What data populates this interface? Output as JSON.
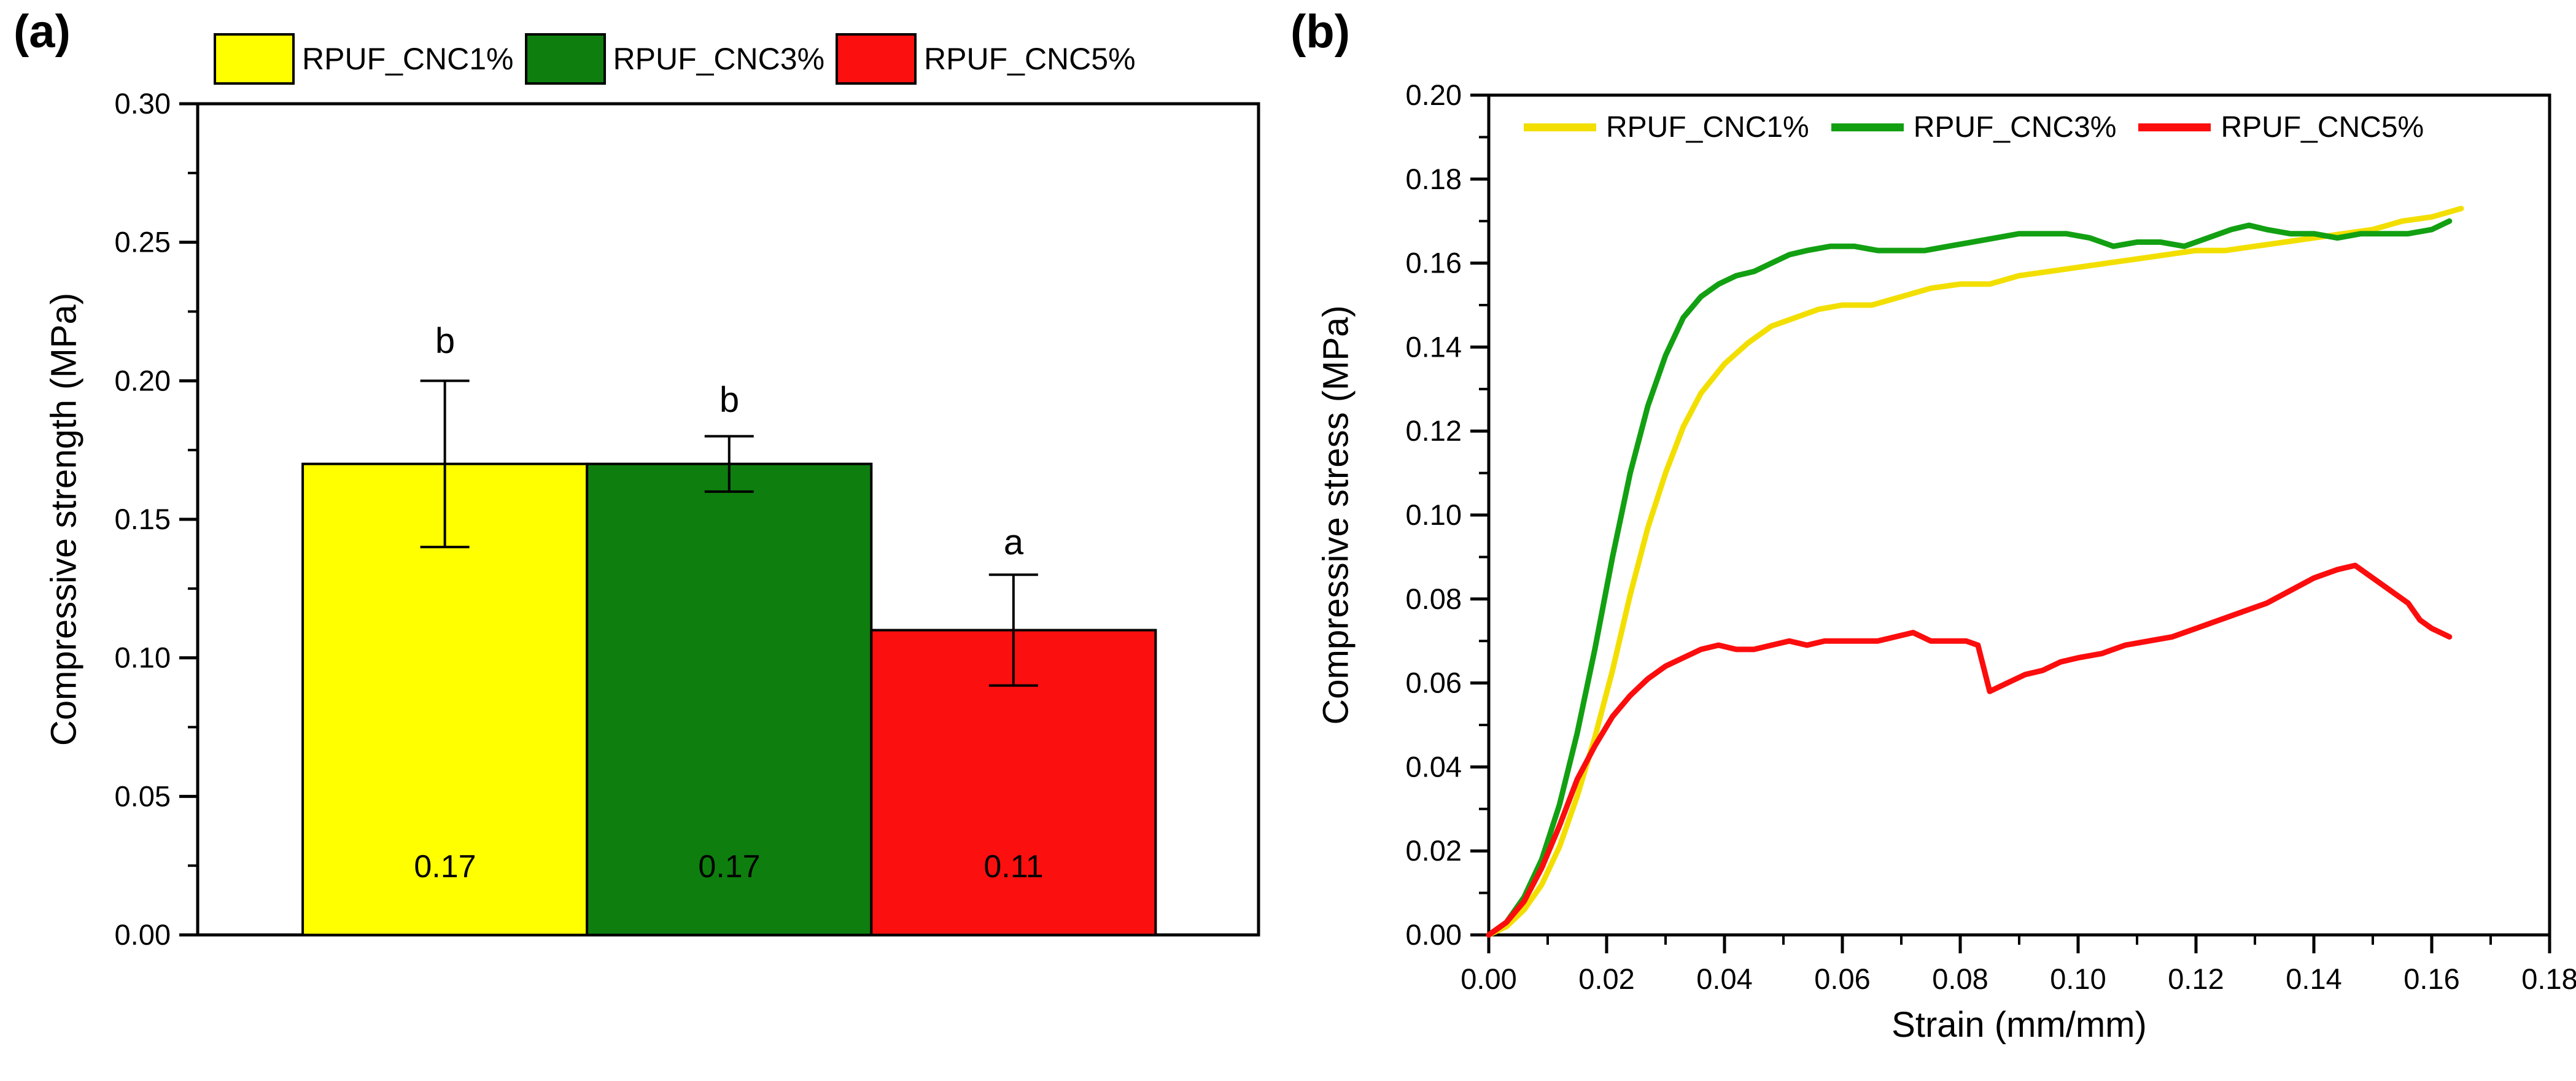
{
  "figure": {
    "panel_a_label": "(a)",
    "panel_b_label": "(b)",
    "background": "#ffffff",
    "text_color": "#000000"
  },
  "chart_data": [
    {
      "type": "bar",
      "panel": "a",
      "title": "",
      "xlabel": "",
      "ylabel": "Compressive strength (MPa)",
      "categories": [
        "RPUF_CNC1%",
        "RPUF_CNC3%",
        "RPUF_CNC5%"
      ],
      "values": [
        0.17,
        0.17,
        0.11
      ],
      "errors": [
        0.03,
        0.01,
        0.02
      ],
      "bar_labels": [
        "0.17",
        "0.17",
        "0.11"
      ],
      "sig_letters": [
        "b",
        "b",
        "a"
      ],
      "colors": [
        "#ffff00",
        "#0e7e0e",
        "#fb0f0f"
      ],
      "bar_edge_color": "#000000",
      "ylim": [
        0,
        0.3
      ],
      "yticks": [
        0,
        0.05,
        0.1,
        0.15,
        0.2,
        0.25,
        0.3
      ],
      "ytick_labels": [
        "0.00",
        "0.05",
        "0.10",
        "0.15",
        "0.20",
        "0.25",
        "0.30"
      ],
      "yticks_minor": [
        0.025,
        0.075,
        0.125,
        0.175,
        0.225,
        0.275
      ],
      "grid": false,
      "legend_position": "top-outside"
    },
    {
      "type": "line",
      "panel": "b",
      "title": "",
      "xlabel": "Strain (mm/mm)",
      "ylabel": "Compressive stress (MPa)",
      "xlim": [
        0,
        0.18
      ],
      "ylim": [
        0,
        0.2
      ],
      "xticks": [
        0,
        0.02,
        0.04,
        0.06,
        0.08,
        0.1,
        0.12,
        0.14,
        0.16,
        0.18
      ],
      "xtick_labels": [
        "0.00",
        "0.02",
        "0.04",
        "0.06",
        "0.08",
        "0.10",
        "0.12",
        "0.14",
        "0.16",
        "0.18"
      ],
      "xticks_minor": [
        0.01,
        0.03,
        0.05,
        0.07,
        0.09,
        0.11,
        0.13,
        0.15,
        0.17
      ],
      "yticks": [
        0,
        0.02,
        0.04,
        0.06,
        0.08,
        0.1,
        0.12,
        0.14,
        0.16,
        0.18,
        0.2
      ],
      "ytick_labels": [
        "0.00",
        "0.02",
        "0.04",
        "0.06",
        "0.08",
        "0.10",
        "0.12",
        "0.14",
        "0.16",
        "0.18",
        "0.20"
      ],
      "yticks_minor": [
        0.01,
        0.03,
        0.05,
        0.07,
        0.09,
        0.11,
        0.13,
        0.15,
        0.17,
        0.19
      ],
      "grid": false,
      "legend_position": "top-inside",
      "series": [
        {
          "name": "RPUF_CNC1%",
          "color": "#f2df00",
          "points": [
            [
              0,
              0
            ],
            [
              0.003,
              0.002
            ],
            [
              0.006,
              0.006
            ],
            [
              0.009,
              0.012
            ],
            [
              0.012,
              0.021
            ],
            [
              0.015,
              0.033
            ],
            [
              0.018,
              0.047
            ],
            [
              0.021,
              0.063
            ],
            [
              0.024,
              0.081
            ],
            [
              0.027,
              0.097
            ],
            [
              0.03,
              0.11
            ],
            [
              0.033,
              0.121
            ],
            [
              0.036,
              0.129
            ],
            [
              0.04,
              0.136
            ],
            [
              0.044,
              0.141
            ],
            [
              0.048,
              0.145
            ],
            [
              0.052,
              0.147
            ],
            [
              0.056,
              0.149
            ],
            [
              0.06,
              0.15
            ],
            [
              0.065,
              0.15
            ],
            [
              0.07,
              0.152
            ],
            [
              0.075,
              0.154
            ],
            [
              0.08,
              0.155
            ],
            [
              0.085,
              0.155
            ],
            [
              0.09,
              0.157
            ],
            [
              0.095,
              0.158
            ],
            [
              0.1,
              0.159
            ],
            [
              0.105,
              0.16
            ],
            [
              0.11,
              0.161
            ],
            [
              0.115,
              0.162
            ],
            [
              0.12,
              0.163
            ],
            [
              0.125,
              0.163
            ],
            [
              0.13,
              0.164
            ],
            [
              0.135,
              0.165
            ],
            [
              0.14,
              0.166
            ],
            [
              0.145,
              0.167
            ],
            [
              0.15,
              0.168
            ],
            [
              0.155,
              0.17
            ],
            [
              0.16,
              0.171
            ],
            [
              0.165,
              0.173
            ]
          ]
        },
        {
          "name": "RPUF_CNC3%",
          "color": "#12a012",
          "points": [
            [
              0,
              0
            ],
            [
              0.003,
              0.003
            ],
            [
              0.006,
              0.009
            ],
            [
              0.009,
              0.018
            ],
            [
              0.012,
              0.031
            ],
            [
              0.015,
              0.048
            ],
            [
              0.018,
              0.068
            ],
            [
              0.021,
              0.09
            ],
            [
              0.024,
              0.11
            ],
            [
              0.027,
              0.126
            ],
            [
              0.03,
              0.138
            ],
            [
              0.033,
              0.147
            ],
            [
              0.036,
              0.152
            ],
            [
              0.039,
              0.155
            ],
            [
              0.042,
              0.157
            ],
            [
              0.045,
              0.158
            ],
            [
              0.048,
              0.16
            ],
            [
              0.051,
              0.162
            ],
            [
              0.054,
              0.163
            ],
            [
              0.058,
              0.164
            ],
            [
              0.062,
              0.164
            ],
            [
              0.066,
              0.163
            ],
            [
              0.07,
              0.163
            ],
            [
              0.074,
              0.163
            ],
            [
              0.078,
              0.164
            ],
            [
              0.082,
              0.165
            ],
            [
              0.086,
              0.166
            ],
            [
              0.09,
              0.167
            ],
            [
              0.094,
              0.167
            ],
            [
              0.098,
              0.167
            ],
            [
              0.102,
              0.166
            ],
            [
              0.106,
              0.164
            ],
            [
              0.11,
              0.165
            ],
            [
              0.114,
              0.165
            ],
            [
              0.118,
              0.164
            ],
            [
              0.122,
              0.166
            ],
            [
              0.126,
              0.168
            ],
            [
              0.129,
              0.169
            ],
            [
              0.132,
              0.168
            ],
            [
              0.136,
              0.167
            ],
            [
              0.14,
              0.167
            ],
            [
              0.144,
              0.166
            ],
            [
              0.148,
              0.167
            ],
            [
              0.152,
              0.167
            ],
            [
              0.156,
              0.167
            ],
            [
              0.16,
              0.168
            ],
            [
              0.163,
              0.17
            ]
          ]
        },
        {
          "name": "RPUF_CNC5%",
          "color": "#fc0d0d",
          "points": [
            [
              0,
              0
            ],
            [
              0.003,
              0.003
            ],
            [
              0.006,
              0.008
            ],
            [
              0.009,
              0.016
            ],
            [
              0.012,
              0.026
            ],
            [
              0.015,
              0.037
            ],
            [
              0.018,
              0.045
            ],
            [
              0.021,
              0.052
            ],
            [
              0.024,
              0.057
            ],
            [
              0.027,
              0.061
            ],
            [
              0.03,
              0.064
            ],
            [
              0.033,
              0.066
            ],
            [
              0.036,
              0.068
            ],
            [
              0.039,
              0.069
            ],
            [
              0.042,
              0.068
            ],
            [
              0.045,
              0.068
            ],
            [
              0.048,
              0.069
            ],
            [
              0.051,
              0.07
            ],
            [
              0.054,
              0.069
            ],
            [
              0.057,
              0.07
            ],
            [
              0.06,
              0.07
            ],
            [
              0.063,
              0.07
            ],
            [
              0.066,
              0.07
            ],
            [
              0.069,
              0.071
            ],
            [
              0.072,
              0.072
            ],
            [
              0.075,
              0.07
            ],
            [
              0.078,
              0.07
            ],
            [
              0.081,
              0.07
            ],
            [
              0.083,
              0.069
            ],
            [
              0.085,
              0.058
            ],
            [
              0.088,
              0.06
            ],
            [
              0.091,
              0.062
            ],
            [
              0.094,
              0.063
            ],
            [
              0.097,
              0.065
            ],
            [
              0.1,
              0.066
            ],
            [
              0.104,
              0.067
            ],
            [
              0.108,
              0.069
            ],
            [
              0.112,
              0.07
            ],
            [
              0.116,
              0.071
            ],
            [
              0.12,
              0.073
            ],
            [
              0.124,
              0.075
            ],
            [
              0.128,
              0.077
            ],
            [
              0.132,
              0.079
            ],
            [
              0.136,
              0.082
            ],
            [
              0.14,
              0.085
            ],
            [
              0.144,
              0.087
            ],
            [
              0.147,
              0.088
            ],
            [
              0.15,
              0.085
            ],
            [
              0.153,
              0.082
            ],
            [
              0.156,
              0.079
            ],
            [
              0.158,
              0.075
            ],
            [
              0.16,
              0.073
            ],
            [
              0.163,
              0.071
            ]
          ]
        }
      ]
    }
  ]
}
